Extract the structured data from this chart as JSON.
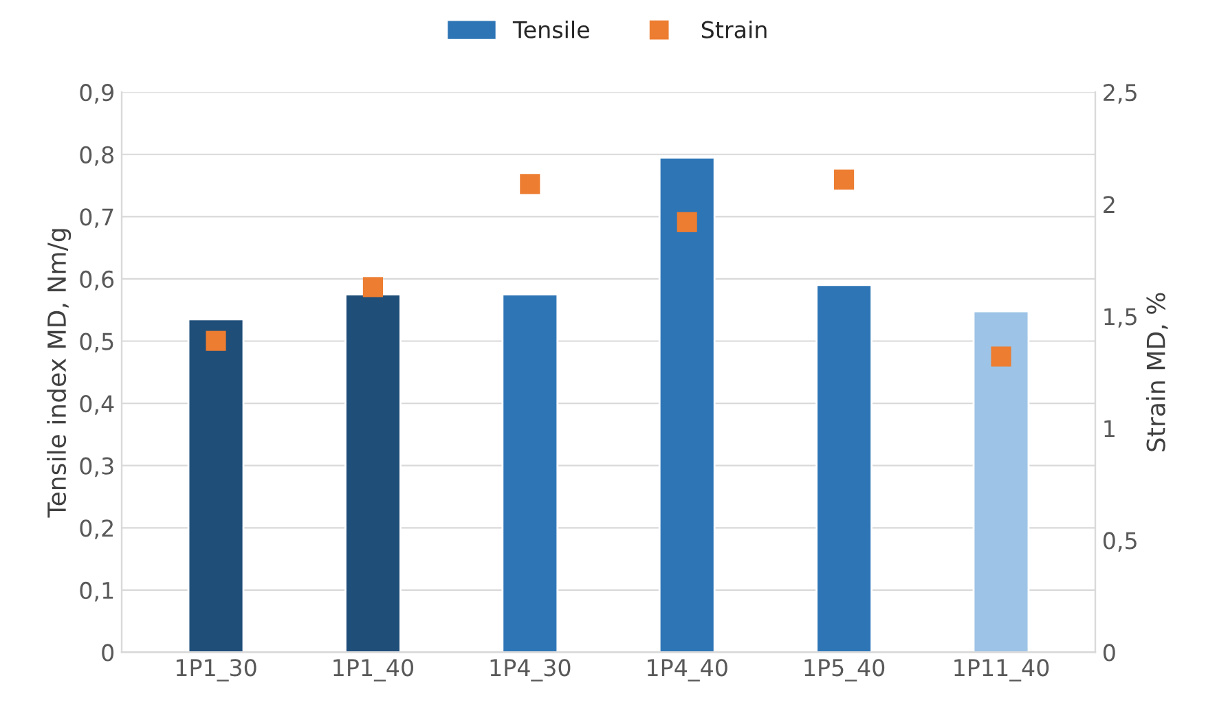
{
  "chart_data": {
    "type": "bar",
    "ylabel": "Tensile index MD, Nm/g",
    "y2label": "Strain MD, %",
    "categories": [
      "1P1_30",
      "1P1_40",
      "1P4_30",
      "1P4_40",
      "1P5_40",
      "1P11_40"
    ],
    "series": [
      {
        "name": "Tensile",
        "color": "#2e75b6",
        "colors": [
          "#1f4e79",
          "#1f4e79",
          "#2e75b6",
          "#2e75b6",
          "#2e75b6",
          "#9dc3e6"
        ],
        "values": [
          0.535,
          0.575,
          0.575,
          0.795,
          0.59,
          0.548
        ]
      },
      {
        "name": "Strain",
        "type": "scatter",
        "axis": "y2",
        "color": "#ed7d31",
        "marker": "square",
        "values": [
          1.39,
          1.63,
          2.09,
          1.92,
          2.11,
          1.32
        ]
      }
    ],
    "ylim": [
      0,
      0.9
    ],
    "yticks": [
      {
        "value": 0,
        "label": "0"
      },
      {
        "value": 0.1,
        "label": "0,1"
      },
      {
        "value": 0.2,
        "label": "0,2"
      },
      {
        "value": 0.3,
        "label": "0,3"
      },
      {
        "value": 0.4,
        "label": "0,4"
      },
      {
        "value": 0.5,
        "label": "0,5"
      },
      {
        "value": 0.6,
        "label": "0,6"
      },
      {
        "value": 0.7,
        "label": "0,7"
      },
      {
        "value": 0.8,
        "label": "0,8"
      },
      {
        "value": 0.9,
        "label": "0,9"
      }
    ],
    "y2lim": [
      0,
      2.5
    ],
    "y2ticks": [
      {
        "value": 0,
        "label": "0"
      },
      {
        "value": 0.5,
        "label": "0,5"
      },
      {
        "value": 1,
        "label": "1"
      },
      {
        "value": 1.5,
        "label": "1,5"
      },
      {
        "value": 2,
        "label": "2"
      },
      {
        "value": 2.5,
        "label": "2,5"
      }
    ],
    "grid": "y",
    "legend": "top"
  }
}
